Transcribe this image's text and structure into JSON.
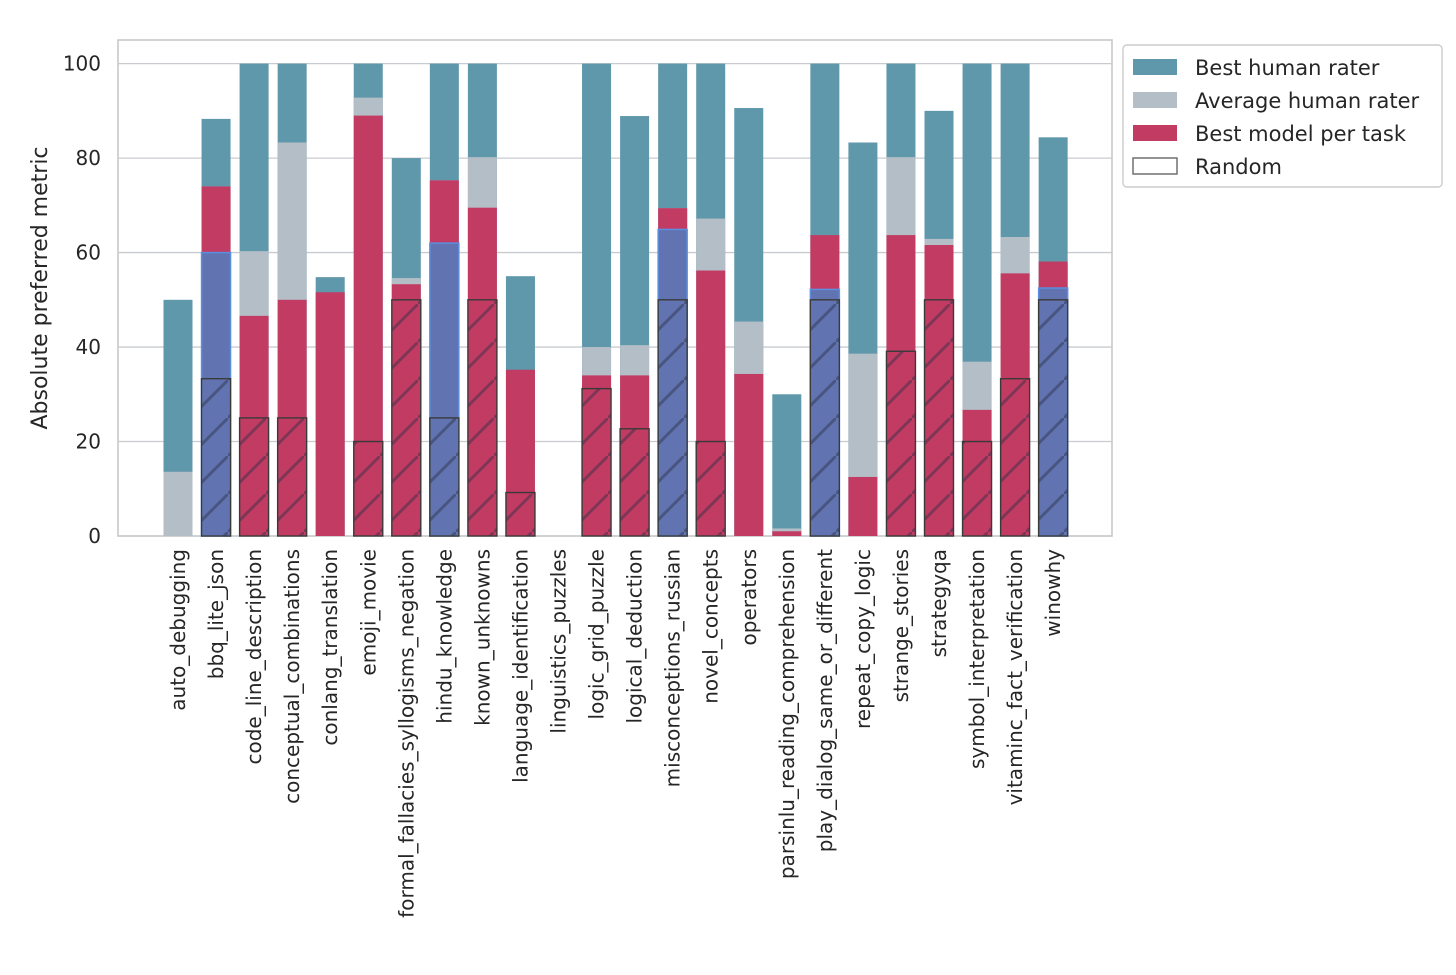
{
  "chart_data": {
    "type": "bar",
    "title": "",
    "xlabel": "",
    "ylabel": "Absolute preferred metric",
    "ylim": [
      0,
      105
    ],
    "yticks": [
      0,
      20,
      40,
      60,
      80,
      100
    ],
    "grid": true,
    "legend_placement": "outside top-right",
    "categories": [
      "auto_debugging",
      "bbq_lite_json",
      "code_line_description",
      "conceptual_combinations",
      "conlang_translation",
      "emoji_movie",
      "formal_fallacies_syllogisms_negation",
      "hindu_knowledge",
      "known_unknowns",
      "language_identification",
      "linguistics_puzzles",
      "logic_grid_puzzle",
      "logical_deduction",
      "misconceptions_russian",
      "novel_concepts",
      "operators",
      "parsinlu_reading_comprehension",
      "play_dialog_same_or_different",
      "repeat_copy_logic",
      "strange_stories",
      "strategyqa",
      "symbol_interpretation",
      "vitaminc_fact_verification",
      "winowhy"
    ],
    "series": [
      {
        "name": "Best human rater",
        "color": "#5f97ab",
        "values": [
          50,
          88.3,
          100,
          100,
          54.8,
          100,
          80,
          100,
          100,
          55,
          0,
          100,
          88.9,
          100,
          100,
          90.6,
          30,
          100,
          83.3,
          100,
          90,
          100,
          100,
          84.4
        ]
      },
      {
        "name": "Average human rater",
        "color": "#b4bec6",
        "values": [
          13.6,
          74,
          60.3,
          83.3,
          17.4,
          92.8,
          54.6,
          75.3,
          80.2,
          16.4,
          0,
          40,
          40.4,
          69.4,
          67.2,
          45.4,
          1.6,
          52.1,
          38.6,
          80.2,
          62.9,
          36.9,
          63.3,
          52.2
        ]
      },
      {
        "name": "Best model per task",
        "color": "#c23b63",
        "values": [
          0,
          74,
          46.6,
          50,
          51.6,
          89,
          53.3,
          75.3,
          69.5,
          35.2,
          0,
          34,
          34,
          69.4,
          56.2,
          34.3,
          1,
          63.7,
          12.5,
          63.7,
          61.6,
          26.7,
          55.6,
          58.1
        ]
      },
      {
        "name": "Random",
        "color": "none",
        "values": [
          0,
          33.3,
          25,
          25,
          0,
          20,
          50,
          25,
          50,
          9.2,
          0,
          31.2,
          22.7,
          50,
          20,
          0,
          0,
          50,
          0,
          39.1,
          50,
          20,
          33.3,
          50
        ]
      }
    ],
    "model_below_human_overlay": {
      "color": "#6174b1",
      "values": [
        null,
        60,
        null,
        null,
        null,
        null,
        null,
        62,
        null,
        null,
        null,
        null,
        null,
        64.9,
        null,
        null,
        null,
        52.2,
        null,
        null,
        null,
        null,
        null,
        52.5
      ]
    }
  }
}
